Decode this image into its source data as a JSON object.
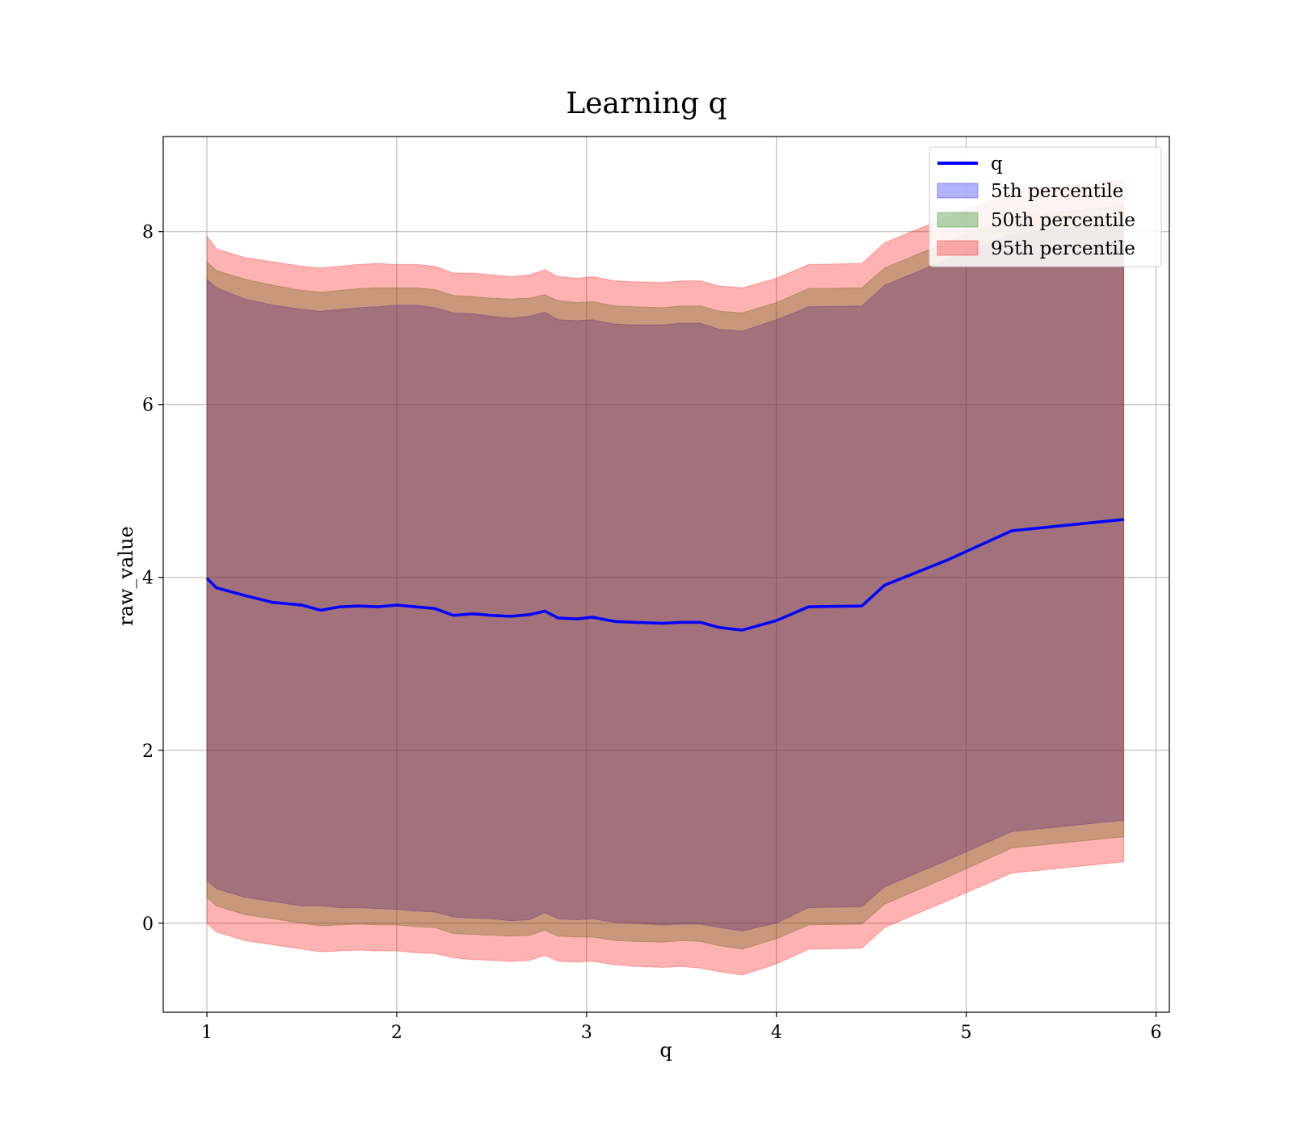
{
  "chart_data": {
    "type": "area",
    "title": "Learning q",
    "xlabel": "q",
    "ylabel": "raw_value",
    "xlim": [
      0.77,
      6.07
    ],
    "ylim": [
      -1.03,
      9.1
    ],
    "xticks": [
      1,
      2,
      3,
      4,
      5,
      6
    ],
    "yticks": [
      0,
      2,
      4,
      6,
      8
    ],
    "grid": true,
    "legend_position": "top-right",
    "x": [
      1.0,
      1.05,
      1.2,
      1.35,
      1.5,
      1.6,
      1.7,
      1.8,
      1.9,
      2.0,
      2.1,
      2.2,
      2.3,
      2.4,
      2.5,
      2.6,
      2.7,
      2.78,
      2.85,
      2.95,
      3.03,
      3.15,
      3.25,
      3.4,
      3.5,
      3.6,
      3.7,
      3.82,
      4.0,
      4.17,
      4.45,
      4.57,
      4.9,
      5.24,
      5.83
    ],
    "line": {
      "name": "q",
      "color": "#0000ff",
      "values": [
        3.99,
        3.88,
        3.79,
        3.71,
        3.68,
        3.62,
        3.66,
        3.67,
        3.66,
        3.68,
        3.66,
        3.64,
        3.56,
        3.58,
        3.56,
        3.55,
        3.57,
        3.61,
        3.53,
        3.52,
        3.54,
        3.49,
        3.48,
        3.47,
        3.48,
        3.48,
        3.42,
        3.39,
        3.5,
        3.66,
        3.67,
        3.91,
        4.2,
        4.54,
        4.67
      ]
    },
    "bands": [
      {
        "name": "5th percentile",
        "color": "#0000ff",
        "lower": [
          0.5,
          0.4,
          0.3,
          0.25,
          0.2,
          0.2,
          0.18,
          0.18,
          0.17,
          0.16,
          0.14,
          0.13,
          0.07,
          0.06,
          0.05,
          0.03,
          0.04,
          0.12,
          0.05,
          0.04,
          0.05,
          0.01,
          0.0,
          -0.02,
          -0.01,
          -0.01,
          -0.05,
          -0.09,
          0.0,
          0.18,
          0.19,
          0.42,
          0.73,
          1.06,
          1.19
        ],
        "upper": [
          7.45,
          7.35,
          7.22,
          7.15,
          7.1,
          7.08,
          7.1,
          7.12,
          7.13,
          7.15,
          7.15,
          7.12,
          7.06,
          7.05,
          7.02,
          7.0,
          7.02,
          7.07,
          6.98,
          6.97,
          6.98,
          6.93,
          6.92,
          6.92,
          6.94,
          6.94,
          6.87,
          6.85,
          6.98,
          7.13,
          7.14,
          7.38,
          7.68,
          7.97,
          8.1
        ]
      },
      {
        "name": "50th percentile",
        "color": "#008000",
        "lower": [
          0.3,
          0.2,
          0.1,
          0.05,
          0.0,
          -0.03,
          -0.02,
          -0.01,
          -0.02,
          -0.02,
          -0.04,
          -0.05,
          -0.12,
          -0.13,
          -0.14,
          -0.15,
          -0.14,
          -0.08,
          -0.15,
          -0.16,
          -0.16,
          -0.2,
          -0.21,
          -0.22,
          -0.2,
          -0.21,
          -0.26,
          -0.3,
          -0.18,
          -0.02,
          -0.01,
          0.22,
          0.53,
          0.87,
          1.0
        ],
        "upper": [
          7.65,
          7.55,
          7.45,
          7.38,
          7.32,
          7.3,
          7.32,
          7.34,
          7.35,
          7.35,
          7.35,
          7.33,
          7.26,
          7.25,
          7.23,
          7.22,
          7.23,
          7.27,
          7.2,
          7.18,
          7.19,
          7.14,
          7.13,
          7.12,
          7.14,
          7.14,
          7.08,
          7.06,
          7.18,
          7.34,
          7.35,
          7.58,
          7.88,
          8.17,
          8.3
        ]
      },
      {
        "name": "95th percentile",
        "color": "#ff0000",
        "lower": [
          0.0,
          -0.1,
          -0.2,
          -0.25,
          -0.3,
          -0.33,
          -0.32,
          -0.31,
          -0.32,
          -0.32,
          -0.34,
          -0.35,
          -0.4,
          -0.42,
          -0.43,
          -0.44,
          -0.43,
          -0.37,
          -0.44,
          -0.45,
          -0.44,
          -0.48,
          -0.5,
          -0.51,
          -0.5,
          -0.52,
          -0.56,
          -0.6,
          -0.47,
          -0.3,
          -0.29,
          -0.05,
          0.26,
          0.58,
          0.71
        ],
        "upper": [
          7.95,
          7.8,
          7.7,
          7.65,
          7.6,
          7.58,
          7.6,
          7.62,
          7.63,
          7.62,
          7.62,
          7.6,
          7.52,
          7.52,
          7.5,
          7.48,
          7.5,
          7.56,
          7.48,
          7.46,
          7.48,
          7.43,
          7.42,
          7.41,
          7.43,
          7.43,
          7.37,
          7.35,
          7.46,
          7.62,
          7.63,
          7.87,
          8.17,
          8.46,
          8.6
        ]
      }
    ]
  }
}
